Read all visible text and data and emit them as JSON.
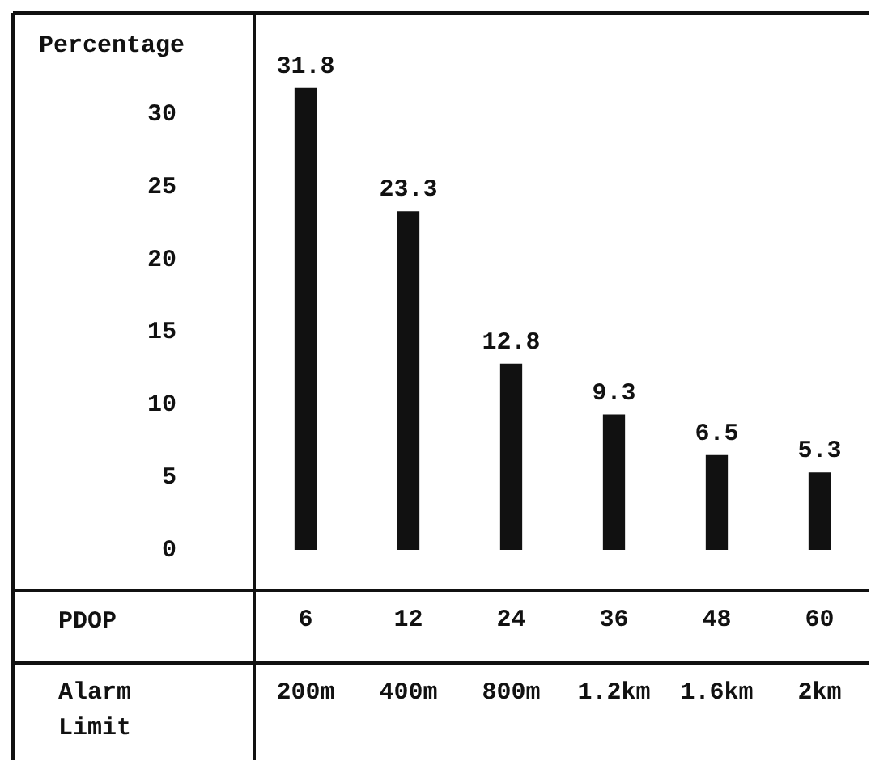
{
  "chart_data": {
    "type": "bar",
    "ylabel": "Percentage",
    "xlabel": "PDOP",
    "categories": [
      "6",
      "12",
      "24",
      "36",
      "48",
      "60"
    ],
    "values": [
      31.8,
      23.3,
      12.8,
      9.3,
      6.5,
      5.3
    ],
    "color": "#111111",
    "ylim": [
      0,
      37
    ],
    "yticks": [
      0,
      5,
      10,
      15,
      20,
      25,
      30
    ],
    "data_labels": true,
    "grid": false,
    "legend": false,
    "annotations": [
      "Alarm Limit",
      "200m",
      "400m",
      "800m",
      "1.2km",
      "1.6km",
      "2km"
    ]
  }
}
